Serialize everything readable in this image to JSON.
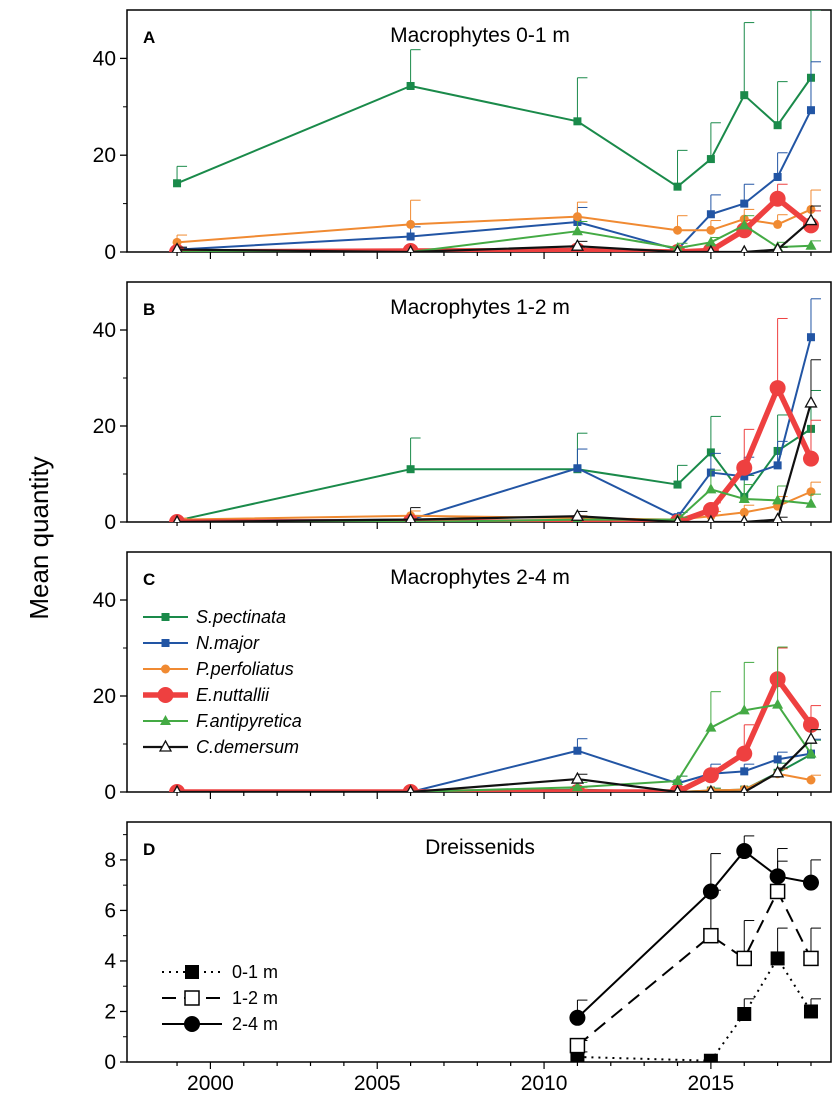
{
  "ylabel": "Mean quantity",
  "chart_data": [
    {
      "type": "line",
      "panel": "A",
      "title": "Macrophytes 0-1 m",
      "ylim": [
        0,
        50
      ],
      "yticks": [
        0,
        20,
        40
      ],
      "series": [
        {
          "name": "S.pectinata",
          "color": "#1a8a4a",
          "marker": "square",
          "x": [
            1999,
            2006,
            2011,
            2014,
            2015,
            2016,
            2017,
            2018
          ],
          "values": [
            14.2,
            34.3,
            27,
            13.5,
            19.2,
            32.4,
            26.2,
            36
          ],
          "err": [
            3.5,
            7.5,
            9,
            7.5,
            7.5,
            15,
            9,
            14
          ]
        },
        {
          "name": "N.major",
          "color": "#2255a4",
          "marker": "square",
          "x": [
            1999,
            2006,
            2011,
            2014,
            2015,
            2016,
            2017,
            2018
          ],
          "values": [
            0.5,
            3.2,
            6.2,
            0.5,
            7.8,
            10,
            15.5,
            29.3
          ],
          "err": [
            0.3,
            2,
            3,
            0.5,
            4,
            4,
            5,
            10
          ]
        },
        {
          "name": "P.perfoliatus",
          "color": "#f08a32",
          "marker": "circle",
          "x": [
            1999,
            2006,
            2011,
            2014,
            2015,
            2016,
            2017,
            2018
          ],
          "values": [
            2,
            5.7,
            7.3,
            4.5,
            4.5,
            6.8,
            5.7,
            8.8
          ],
          "err": [
            1.5,
            5,
            3,
            3,
            2,
            2,
            2,
            4
          ]
        },
        {
          "name": "E.nuttallii",
          "color": "#ee4040",
          "marker": "circle-large",
          "x": [
            1999,
            2006,
            2011,
            2014,
            2015,
            2016,
            2017,
            2018
          ],
          "values": [
            0,
            0.2,
            0.3,
            0,
            0.3,
            4.5,
            11,
            5.5
          ],
          "err": [
            0,
            0,
            0,
            0,
            0,
            2,
            3,
            3
          ]
        },
        {
          "name": "F.antipyretica",
          "color": "#44aa44",
          "marker": "triangle",
          "x": [
            1999,
            2006,
            2011,
            2014,
            2015,
            2016,
            2017,
            2018
          ],
          "values": [
            0,
            0,
            4.3,
            0.8,
            2,
            5.5,
            1,
            1.3
          ],
          "err": [
            0,
            0,
            2,
            1,
            1,
            2,
            1,
            1
          ]
        },
        {
          "name": "C.demersum",
          "color": "#111111",
          "marker": "triangle-open",
          "x": [
            1999,
            2006,
            2011,
            2014,
            2015,
            2016,
            2017,
            2018
          ],
          "values": [
            0.5,
            0,
            1.2,
            0,
            0,
            0,
            0.5,
            6.5
          ],
          "err": [
            0.5,
            0,
            1,
            0,
            0,
            0,
            0.5,
            3
          ]
        }
      ]
    },
    {
      "type": "line",
      "panel": "B",
      "title": "Macrophytes 1-2 m",
      "ylim": [
        0,
        50
      ],
      "yticks": [
        0,
        20,
        40
      ],
      "series": [
        {
          "name": "S.pectinata",
          "color": "#1a8a4a",
          "marker": "square",
          "x": [
            1999,
            2006,
            2011,
            2014,
            2015,
            2016,
            2017,
            2018
          ],
          "values": [
            0.3,
            11,
            11,
            7.8,
            14.5,
            5.2,
            14.8,
            19.4
          ],
          "err": [
            0.2,
            6.5,
            7.5,
            4,
            7.5,
            4.5,
            7.5,
            8
          ]
        },
        {
          "name": "N.major",
          "color": "#2255a4",
          "marker": "square",
          "x": [
            1999,
            2006,
            2011,
            2014,
            2015,
            2016,
            2017,
            2018
          ],
          "values": [
            0.3,
            0.5,
            11.2,
            1,
            10.3,
            9.5,
            11.8,
            38.5
          ],
          "err": [
            0.2,
            0.5,
            4,
            1,
            4,
            4,
            5,
            8
          ]
        },
        {
          "name": "P.perfoliatus",
          "color": "#f08a32",
          "marker": "circle",
          "x": [
            1999,
            2006,
            2011,
            2014,
            2015,
            2016,
            2017,
            2018
          ],
          "values": [
            0.5,
            1.3,
            0.8,
            0.5,
            1.2,
            2,
            3.3,
            6.3
          ],
          "err": [
            0.3,
            1,
            0.5,
            0.5,
            1,
            1.5,
            2,
            2
          ]
        },
        {
          "name": "E.nuttallii",
          "color": "#ee4040",
          "marker": "circle-large",
          "x": [
            1999,
            2006,
            2011,
            2014,
            2015,
            2016,
            2017,
            2018
          ],
          "values": [
            0,
            0,
            0,
            0,
            2.5,
            11.3,
            27.9,
            13.2
          ],
          "err": [
            0,
            0,
            0,
            0,
            1.5,
            8,
            14.5,
            8
          ]
        },
        {
          "name": "F.antipyretica",
          "color": "#44aa44",
          "marker": "triangle",
          "x": [
            1999,
            2006,
            2011,
            2014,
            2015,
            2016,
            2017,
            2018
          ],
          "values": [
            0,
            0,
            0.5,
            0.5,
            6.8,
            4.8,
            4.5,
            3.8
          ],
          "err": [
            0,
            0,
            0.5,
            0.5,
            4,
            3,
            3,
            2
          ]
        },
        {
          "name": "C.demersum",
          "color": "#111111",
          "marker": "triangle-open",
          "x": [
            1999,
            2006,
            2011,
            2014,
            2015,
            2016,
            2017,
            2018
          ],
          "values": [
            0,
            0.5,
            1.2,
            0,
            0,
            0,
            0.5,
            24.8
          ],
          "err": [
            0,
            2.5,
            1,
            0,
            0,
            0,
            0.5,
            9
          ]
        }
      ]
    },
    {
      "type": "line",
      "panel": "C",
      "title": "Macrophytes 2-4 m",
      "ylim": [
        0,
        50
      ],
      "yticks": [
        0,
        20,
        40
      ],
      "series": [
        {
          "name": "S.pectinata",
          "color": "#1a8a4a",
          "marker": "square",
          "x": [
            1999,
            2006,
            2011,
            2014,
            2015,
            2016,
            2017,
            2018
          ],
          "values": [
            0,
            0,
            0.5,
            0,
            0.3,
            0.5,
            4,
            7.8
          ],
          "err": [
            0,
            0,
            0.5,
            0,
            0.5,
            0.5,
            2,
            3
          ]
        },
        {
          "name": "N.major",
          "color": "#2255a4",
          "marker": "square",
          "x": [
            1999,
            2006,
            2011,
            2014,
            2015,
            2016,
            2017,
            2018
          ],
          "values": [
            0,
            0,
            8.6,
            1.8,
            3.8,
            4.3,
            6.8,
            8
          ],
          "err": [
            0,
            0,
            2.5,
            1.5,
            2,
            1.5,
            1.5,
            3
          ]
        },
        {
          "name": "P.perfoliatus",
          "color": "#f08a32",
          "marker": "circle",
          "x": [
            1999,
            2006,
            2011,
            2014,
            2015,
            2016,
            2017,
            2018
          ],
          "values": [
            0,
            0,
            0.3,
            0,
            0.3,
            0.5,
            3.8,
            2.5
          ],
          "err": [
            0,
            0,
            0.3,
            0,
            0.3,
            0.5,
            1,
            1
          ]
        },
        {
          "name": "E.nuttallii",
          "color": "#ee4040",
          "marker": "circle-large",
          "x": [
            1999,
            2006,
            2011,
            2014,
            2015,
            2016,
            2017,
            2018
          ],
          "values": [
            0,
            0,
            0,
            0,
            3.5,
            8,
            23.5,
            14
          ],
          "err": [
            0,
            0,
            0,
            0,
            1.5,
            6,
            6.5,
            4
          ]
        },
        {
          "name": "F.antipyretica",
          "color": "#44aa44",
          "marker": "triangle",
          "x": [
            1999,
            2006,
            2011,
            2014,
            2015,
            2016,
            2017,
            2018
          ],
          "values": [
            0,
            0,
            1,
            2.3,
            13.4,
            17,
            18.2,
            8
          ],
          "err": [
            0,
            0,
            1,
            1,
            7.5,
            10,
            12,
            5
          ]
        },
        {
          "name": "C.demersum",
          "color": "#111111",
          "marker": "triangle-open",
          "x": [
            1999,
            2006,
            2011,
            2014,
            2015,
            2016,
            2017,
            2018
          ],
          "values": [
            0,
            0,
            2.7,
            0,
            0,
            0,
            4,
            11
          ],
          "err": [
            0,
            0,
            1,
            0,
            0,
            0,
            1,
            2
          ]
        }
      ]
    },
    {
      "type": "line",
      "panel": "D",
      "title": "Dreissenids",
      "ylim": [
        0,
        9.5
      ],
      "yticks": [
        0,
        2,
        4,
        6,
        8
      ],
      "xlim": [
        1997.5,
        2018.6
      ],
      "xticks": [
        2000,
        2005,
        2010,
        2015
      ],
      "series": [
        {
          "name": "0-1 m",
          "color": "#000000",
          "marker": "square-filled",
          "dash": "dot",
          "x": [
            2011,
            2015,
            2016,
            2017,
            2018
          ],
          "values": [
            0.2,
            0.05,
            1.9,
            4.1,
            2
          ],
          "err": [
            0.2,
            0,
            0.6,
            1.2,
            0.5
          ]
        },
        {
          "name": "1-2 m",
          "color": "#000000",
          "marker": "square-open",
          "dash": "dash",
          "x": [
            2011,
            2015,
            2016,
            2017,
            2018
          ],
          "values": [
            0.65,
            5,
            4.1,
            6.75,
            4.1
          ],
          "err": [
            0.2,
            1.8,
            1.5,
            1.2,
            1.2
          ]
        },
        {
          "name": "2-4 m",
          "color": "#000000",
          "marker": "circle-filled",
          "dash": "solid",
          "x": [
            2011,
            2015,
            2016,
            2017,
            2018
          ],
          "values": [
            1.75,
            6.75,
            8.35,
            7.35,
            7.1
          ],
          "err": [
            0.7,
            1.5,
            0.6,
            1.1,
            0.9
          ]
        }
      ]
    }
  ]
}
